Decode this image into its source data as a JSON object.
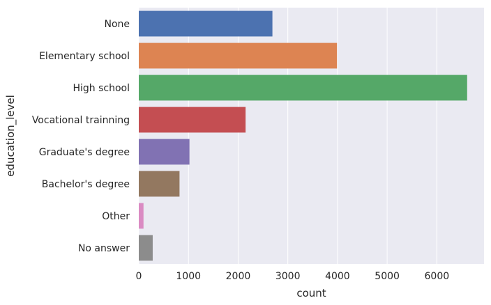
{
  "chart_data": {
    "type": "bar",
    "orientation": "horizontal",
    "categories": [
      "None",
      "Elementary school",
      "High school",
      "Vocational trainning",
      "Graduate's degree",
      "Bachelor's degree",
      "Other",
      "No answer"
    ],
    "values": [
      2690,
      3990,
      6610,
      2150,
      1020,
      820,
      95,
      280
    ],
    "colors": [
      "#4c72b0",
      "#dd8452",
      "#55a868",
      "#c44e52",
      "#8172b3",
      "#937860",
      "#da8bc3",
      "#8c8c8c"
    ],
    "xlabel": "count",
    "ylabel": "education_level",
    "xlim": [
      0,
      6950
    ],
    "xticks": [
      0,
      1000,
      2000,
      3000,
      4000,
      5000,
      6000
    ],
    "grid": true,
    "background": "#eaeaf2",
    "gridColor": "#ffffff"
  }
}
